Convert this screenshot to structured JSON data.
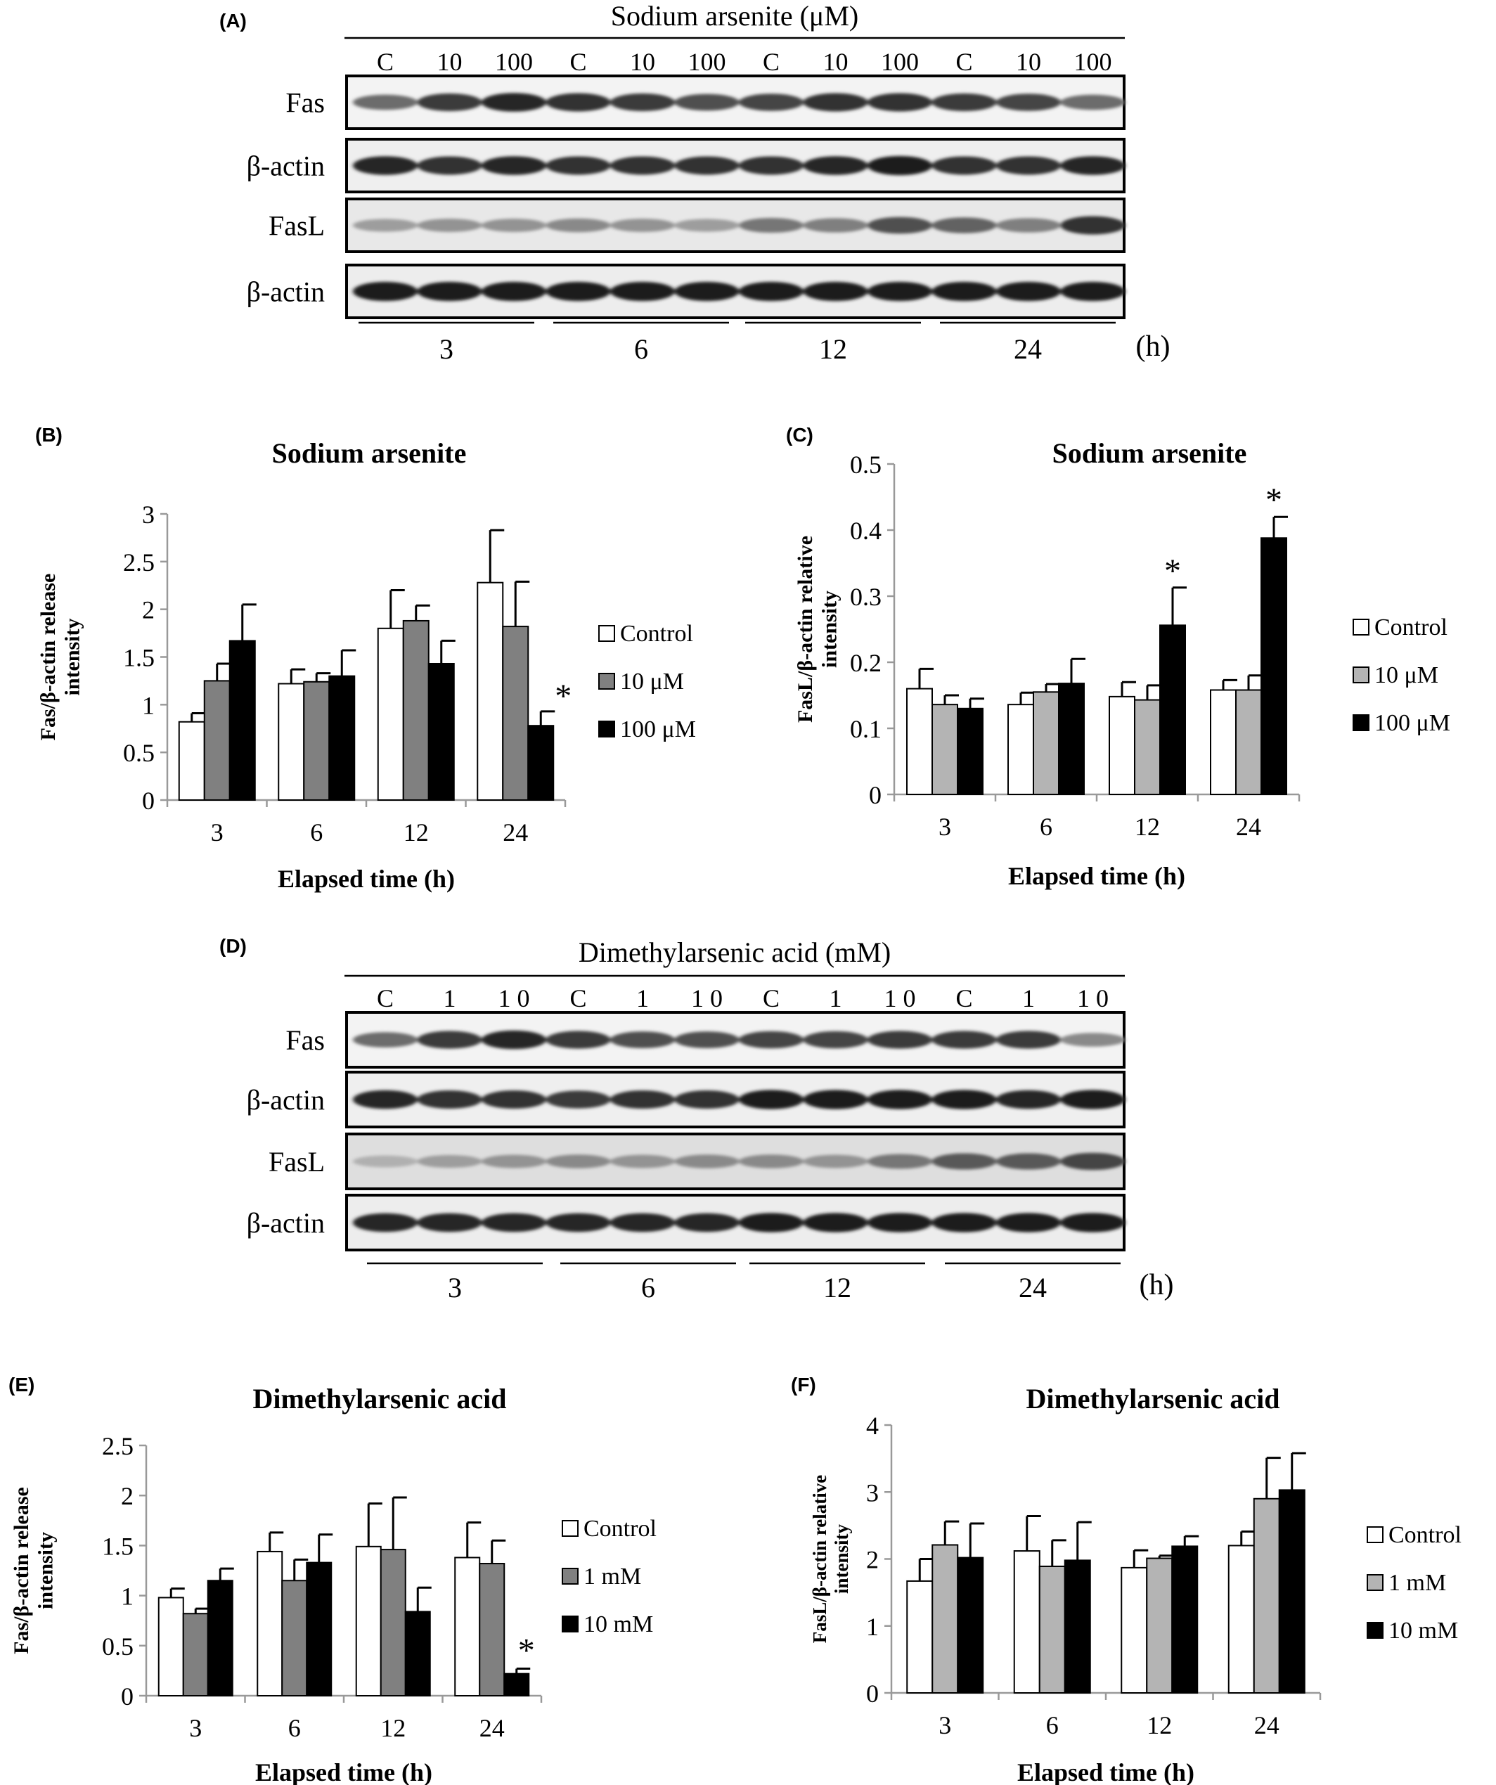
{
  "panel_labels": {
    "A": "(A)",
    "B": "(B)",
    "C": "(C)",
    "D": "(D)",
    "E": "(E)",
    "F": "(F)"
  },
  "blot_A": {
    "title": "Sodium arsenite (μM)",
    "lanes": [
      "C",
      "10",
      "100",
      "C",
      "10",
      "100",
      "C",
      "10",
      "100",
      "C",
      "10",
      "100"
    ],
    "rows": [
      "Fas",
      "β-actin",
      "FasL",
      "β-actin"
    ],
    "timepoints": [
      "3",
      "6",
      "12",
      "24"
    ],
    "time_unit": "(h)"
  },
  "blot_D": {
    "title": "Dimethylarsenic acid (mM)",
    "lanes": [
      "C",
      "1",
      "1 0",
      "C",
      "1",
      "1 0",
      "C",
      "1",
      "1 0",
      "C",
      "1",
      "1 0"
    ],
    "rows": [
      "Fas",
      "β-actin",
      "FasL",
      "β-actin"
    ],
    "timepoints": [
      "3",
      "6",
      "12",
      "24"
    ],
    "time_unit": "(h)"
  },
  "colors": {
    "control": "#ffffff",
    "mid": "#808080",
    "mid_light": "#b4b4b4",
    "high": "#000000",
    "axis": "#999999"
  },
  "chart_data": [
    {
      "id": "B",
      "type": "bar",
      "title": "Sodium arsenite",
      "xlabel": "Elapsed time (h)",
      "ylabel": "Fas/β-actin release intensity",
      "categories": [
        "3",
        "6",
        "12",
        "24"
      ],
      "ylim": [
        0,
        3
      ],
      "yticks": [
        "0",
        "0.5",
        "1",
        "1.5",
        "2",
        "2.5",
        "3"
      ],
      "series": [
        {
          "name": "Control",
          "values": [
            0.82,
            1.22,
            1.8,
            2.28
          ],
          "errors": [
            0.09,
            0.15,
            0.4,
            0.55
          ]
        },
        {
          "name": "10 μM",
          "values": [
            1.25,
            1.24,
            1.88,
            1.82
          ],
          "errors": [
            0.18,
            0.09,
            0.16,
            0.47
          ]
        },
        {
          "name": "100 μM",
          "values": [
            1.67,
            1.3,
            1.43,
            0.78
          ],
          "errors": [
            0.38,
            0.27,
            0.24,
            0.15
          ]
        }
      ],
      "annotations": [
        {
          "text": "*",
          "category": "24",
          "series": "100 μM"
        }
      ]
    },
    {
      "id": "C",
      "type": "bar",
      "title": "Sodium arsenite",
      "xlabel": "Elapsed time (h)",
      "ylabel": "FasL/β-actin relative intensity",
      "categories": [
        "3",
        "6",
        "12",
        "24"
      ],
      "ylim": [
        0,
        0.5
      ],
      "yticks": [
        "0",
        "0.1",
        "0.2",
        "0.3",
        "0.4",
        "0.5"
      ],
      "series": [
        {
          "name": "Control",
          "values": [
            0.16,
            0.136,
            0.148,
            0.158
          ],
          "errors": [
            0.03,
            0.018,
            0.022,
            0.015
          ]
        },
        {
          "name": "10 μM",
          "values": [
            0.136,
            0.155,
            0.143,
            0.158
          ],
          "errors": [
            0.014,
            0.012,
            0.022,
            0.022
          ]
        },
        {
          "name": "100 μM",
          "values": [
            0.13,
            0.168,
            0.256,
            0.388
          ],
          "errors": [
            0.015,
            0.037,
            0.057,
            0.032
          ]
        }
      ],
      "annotations": [
        {
          "text": "*",
          "category": "12",
          "series": "100 μM"
        },
        {
          "text": "*",
          "category": "24",
          "series": "100 μM"
        }
      ]
    },
    {
      "id": "E",
      "type": "bar",
      "title": "Dimethylarsenic acid",
      "xlabel": "Elapsed time (h)",
      "ylabel": "Fas/β-actin release intensity",
      "categories": [
        "3",
        "6",
        "12",
        "24"
      ],
      "ylim": [
        0,
        2.5
      ],
      "yticks": [
        "0",
        "0.5",
        "1",
        "1.5",
        "2",
        "2.5"
      ],
      "series": [
        {
          "name": "Control",
          "values": [
            0.98,
            1.44,
            1.49,
            1.38
          ],
          "errors": [
            0.09,
            0.19,
            0.43,
            0.35
          ]
        },
        {
          "name": "1 mM",
          "values": [
            0.82,
            1.15,
            1.46,
            1.32
          ],
          "errors": [
            0.05,
            0.21,
            0.52,
            0.23
          ]
        },
        {
          "name": "10 mM",
          "values": [
            1.15,
            1.33,
            0.84,
            0.22
          ],
          "errors": [
            0.12,
            0.28,
            0.24,
            0.05
          ]
        }
      ],
      "annotations": [
        {
          "text": "*",
          "category": "24",
          "series": "10 mM"
        }
      ]
    },
    {
      "id": "F",
      "type": "bar",
      "title": "Dimethylarsenic acid",
      "xlabel": "Elapsed time (h)",
      "ylabel": "FasL/β-actin relative intensity",
      "categories": [
        "3",
        "6",
        "12",
        "24"
      ],
      "ylim": [
        0,
        4
      ],
      "yticks": [
        "0",
        "1",
        "2",
        "3",
        "4"
      ],
      "series": [
        {
          "name": "Control",
          "values": [
            1.67,
            2.12,
            1.87,
            2.2
          ],
          "errors": [
            0.33,
            0.52,
            0.26,
            0.21
          ]
        },
        {
          "name": "1 mM",
          "values": [
            2.21,
            1.89,
            2.01,
            2.9
          ],
          "errors": [
            0.35,
            0.39,
            0.04,
            0.61
          ]
        },
        {
          "name": "10 mM",
          "values": [
            2.02,
            1.98,
            2.19,
            3.03
          ],
          "errors": [
            0.51,
            0.57,
            0.15,
            0.55
          ]
        }
      ],
      "annotations": []
    }
  ]
}
